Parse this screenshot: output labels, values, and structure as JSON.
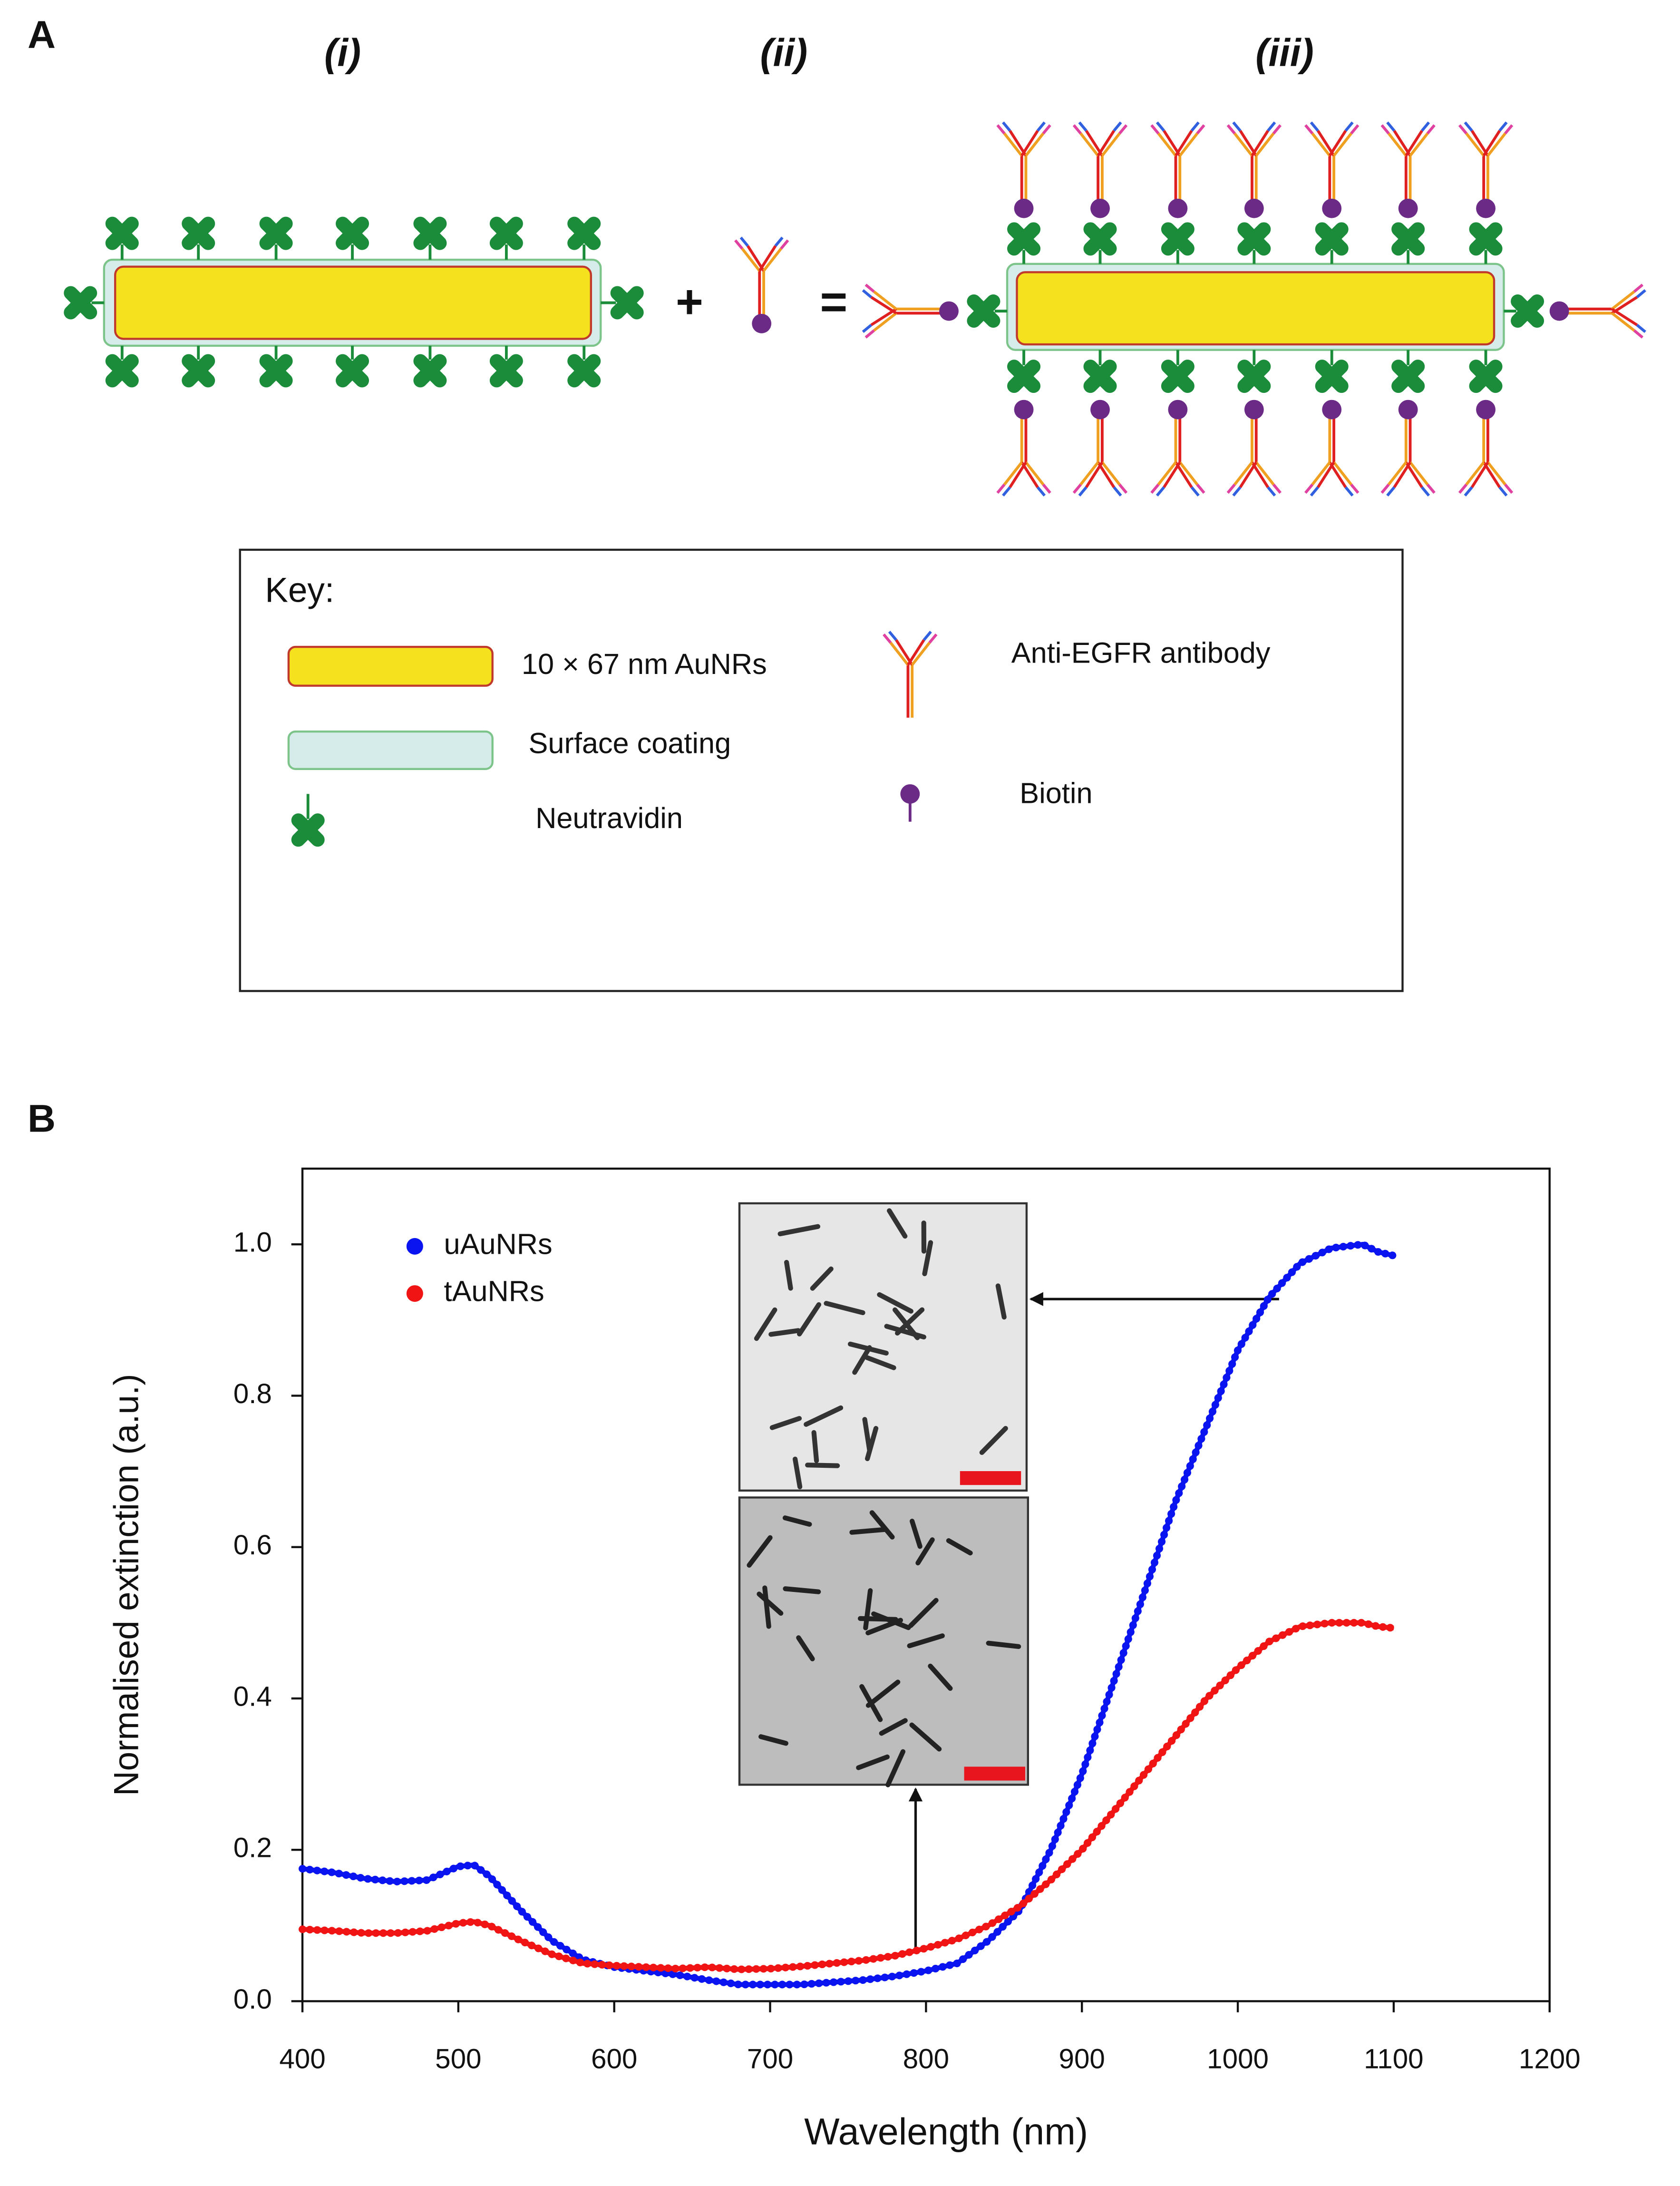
{
  "panel_a": {
    "label": "A",
    "columns": [
      "(i)",
      "(ii)",
      "(iii)"
    ],
    "operators": [
      "+",
      "="
    ],
    "key": {
      "title": "Key:",
      "items": [
        "10 × 67 nm AuNRs",
        "Surface coating",
        "Neutravidin",
        "Anti-EGFR antibody",
        "Biotin"
      ]
    }
  },
  "panel_b": {
    "label": "B"
  },
  "chart_data": {
    "type": "line",
    "x_label": "Wavelength (nm)",
    "y_label": "Normalised extinction (a.u.)",
    "x": [
      400,
      420,
      440,
      460,
      480,
      500,
      510,
      520,
      540,
      560,
      580,
      600,
      620,
      640,
      660,
      680,
      700,
      720,
      740,
      760,
      780,
      800,
      820,
      840,
      860,
      880,
      900,
      920,
      940,
      960,
      980,
      1000,
      1020,
      1040,
      1060,
      1080,
      1090,
      1100
    ],
    "series": [
      {
        "name": "uAuNRs",
        "color": "#0a14f0",
        "values": [
          0.175,
          0.17,
          0.162,
          0.158,
          0.16,
          0.178,
          0.18,
          0.165,
          0.12,
          0.08,
          0.055,
          0.045,
          0.04,
          0.035,
          0.028,
          0.022,
          0.022,
          0.022,
          0.025,
          0.028,
          0.033,
          0.04,
          0.05,
          0.08,
          0.12,
          0.2,
          0.3,
          0.42,
          0.54,
          0.66,
          0.76,
          0.86,
          0.93,
          0.975,
          0.995,
          1.0,
          0.99,
          0.985
        ]
      },
      {
        "name": "tAuNRs",
        "color": "#f01414",
        "values": [
          0.095,
          0.093,
          0.09,
          0.09,
          0.093,
          0.103,
          0.105,
          0.1,
          0.08,
          0.062,
          0.05,
          0.047,
          0.045,
          0.043,
          0.045,
          0.042,
          0.043,
          0.046,
          0.05,
          0.054,
          0.06,
          0.07,
          0.082,
          0.1,
          0.125,
          0.16,
          0.2,
          0.25,
          0.3,
          0.35,
          0.4,
          0.44,
          0.475,
          0.495,
          0.5,
          0.5,
          0.495,
          0.493
        ]
      }
    ],
    "xlim": [
      400,
      1200
    ],
    "xticks": [
      400,
      500,
      600,
      700,
      800,
      900,
      1000,
      1100,
      1200
    ],
    "ylim": [
      0,
      1.1
    ],
    "yticks": [
      {
        "value": 0,
        "label": "0.0"
      },
      0.2,
      0.4,
      0.6,
      0.8,
      {
        "value": 1,
        "label": "1.0"
      }
    ],
    "legend": "upper left",
    "grid": false
  }
}
